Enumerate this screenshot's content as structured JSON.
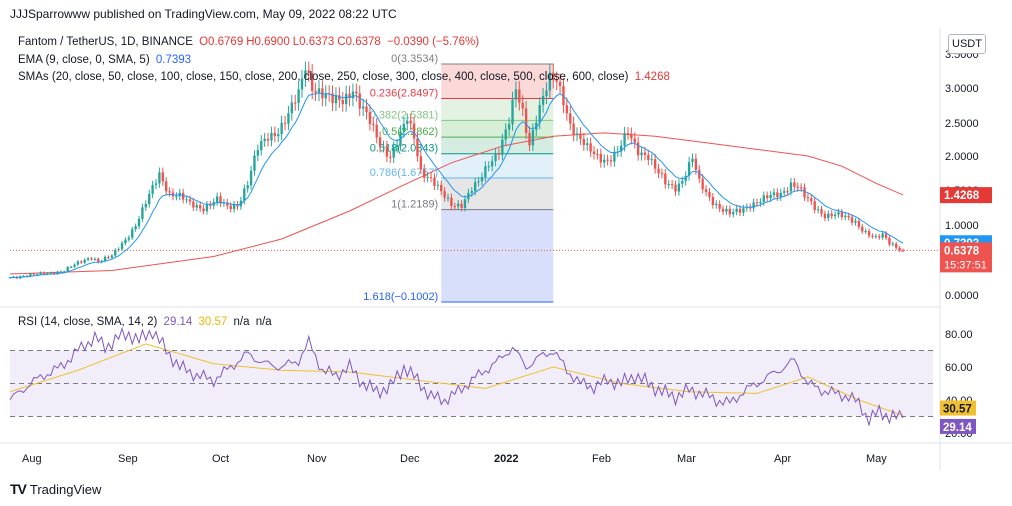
{
  "header": {
    "publish_text": "JJJSparrowww published on TradingView.com, May 09, 2022 08:22 UTC"
  },
  "legend": {
    "symbol": "Fantom / TetherUS, 1D, BINANCE",
    "open": "O0.6769",
    "high": "H0.6900",
    "low": "L0.6373",
    "close": "C0.6378",
    "change": "−0.0390 (−5.76%)",
    "ema_label": "EMA (9, close, 0, SMA, 5)",
    "ema_value": "0.7393",
    "sma_label": "SMAs (20, close, 50, close, 100, close, 150, close, 200, close, 250, close, 300, close, 400, close, 500, close, 600, close)",
    "sma_value": "1.4268",
    "rsi_label": "RSI (14, close, SMA, 14, 2)",
    "rsi_value": "29.14",
    "rsi_sma_value": "30.57",
    "na1": "n/a",
    "na2": "n/a"
  },
  "currency_button": "USDT",
  "footer": {
    "logo": "TV",
    "brand": "TradingView"
  },
  "colors": {
    "up": "#26a69a",
    "down": "#ef5350",
    "ema": "#2196f3",
    "sma": "#ef5350",
    "rsi": "#7e57c2",
    "rsi_ma": "#f0c030"
  },
  "chart_data": [
    {
      "type": "candlestick",
      "title": "Fantom / TetherUS, 1D, BINANCE",
      "x_labels": [
        "Aug",
        "Sep",
        "Oct",
        "Nov",
        "Dec",
        "2022",
        "Feb",
        "Mar",
        "Apr",
        "May"
      ],
      "y_ticks": [
        "0.0000",
        "1.0000",
        "1.5000",
        "2.0000",
        "2.5000",
        "3.0000",
        "3.5000"
      ],
      "ylim": [
        -0.1,
        3.6
      ],
      "series": [
        {
          "name": "FTMUSDT close",
          "points": [
            [
              0,
              0.25
            ],
            [
              4,
              0.28
            ],
            [
              8,
              0.29
            ],
            [
              12,
              0.32
            ],
            [
              16,
              0.35
            ],
            [
              20,
              0.45
            ],
            [
              24,
              0.55
            ],
            [
              26,
              0.48
            ],
            [
              30,
              0.55
            ],
            [
              34,
              0.8
            ],
            [
              37,
              1.0
            ],
            [
              40,
              1.3
            ],
            [
              44,
              1.75
            ],
            [
              47,
              1.45
            ],
            [
              50,
              1.4
            ],
            [
              53,
              1.3
            ],
            [
              57,
              1.25
            ],
            [
              61,
              1.35
            ],
            [
              64,
              1.25
            ],
            [
              67,
              1.3
            ],
            [
              70,
              1.6
            ],
            [
              73,
              2.1
            ],
            [
              76,
              2.3
            ],
            [
              79,
              2.4
            ],
            [
              82,
              2.6
            ],
            [
              85,
              2.9
            ],
            [
              87,
              3.35
            ],
            [
              89,
              3.05
            ],
            [
              92,
              2.9
            ],
            [
              95,
              2.8
            ],
            [
              98,
              2.85
            ],
            [
              101,
              3.0
            ],
            [
              103,
              2.75
            ],
            [
              106,
              2.5
            ],
            [
              109,
              2.2
            ],
            [
              112,
              2.0
            ],
            [
              115,
              2.3
            ],
            [
              117,
              2.55
            ],
            [
              119,
              2.3
            ],
            [
              121,
              1.8
            ],
            [
              124,
              1.65
            ],
            [
              127,
              1.45
            ],
            [
              130,
              1.3
            ],
            [
              133,
              1.3
            ],
            [
              136,
              1.5
            ],
            [
              138,
              1.6
            ],
            [
              141,
              1.9
            ],
            [
              144,
              2.1
            ],
            [
              147,
              2.5
            ],
            [
              149,
              2.95
            ],
            [
              151,
              2.65
            ],
            [
              153,
              2.2
            ],
            [
              155,
              2.6
            ],
            [
              157,
              2.85
            ],
            [
              159,
              3.1
            ],
            [
              161,
              3.1
            ],
            [
              163,
              2.85
            ],
            [
              165,
              2.5
            ],
            [
              167,
              2.3
            ],
            [
              170,
              2.1
            ],
            [
              173,
              2.0
            ],
            [
              176,
              1.95
            ],
            [
              179,
              2.05
            ],
            [
              182,
              2.35
            ],
            [
              185,
              2.1
            ],
            [
              188,
              2.0
            ],
            [
              190,
              1.8
            ],
            [
              193,
              1.6
            ],
            [
              196,
              1.55
            ],
            [
              198,
              1.65
            ],
            [
              201,
              1.95
            ],
            [
              203,
              1.6
            ],
            [
              206,
              1.4
            ],
            [
              209,
              1.25
            ],
            [
              212,
              1.15
            ],
            [
              215,
              1.2
            ],
            [
              218,
              1.3
            ],
            [
              221,
              1.35
            ],
            [
              224,
              1.4
            ],
            [
              227,
              1.45
            ],
            [
              230,
              1.6
            ],
            [
              232,
              1.55
            ],
            [
              234,
              1.4
            ],
            [
              237,
              1.25
            ],
            [
              240,
              1.15
            ],
            [
              243,
              1.15
            ],
            [
              246,
              1.1
            ],
            [
              249,
              1.05
            ],
            [
              252,
              0.9
            ],
            [
              255,
              0.8
            ],
            [
              257,
              0.85
            ],
            [
              259,
              0.75
            ],
            [
              261,
              0.7
            ],
            [
              263,
              0.6378
            ]
          ]
        },
        {
          "name": "EMA 9",
          "value": "0.7393"
        },
        {
          "name": "SMA",
          "value": "1.4268",
          "points": [
            [
              0,
              0.3
            ],
            [
              30,
              0.35
            ],
            [
              60,
              0.55
            ],
            [
              80,
              0.8
            ],
            [
              100,
              1.2
            ],
            [
              115,
              1.55
            ],
            [
              130,
              1.9
            ],
            [
              145,
              2.15
            ],
            [
              160,
              2.3
            ],
            [
              175,
              2.35
            ],
            [
              190,
              2.3
            ],
            [
              205,
              2.2
            ],
            [
              220,
              2.1
            ],
            [
              235,
              2.0
            ],
            [
              245,
              1.85
            ],
            [
              255,
              1.6
            ],
            [
              263,
              1.43
            ]
          ]
        }
      ],
      "fibonacci": [
        {
          "label": "0(3.3534)",
          "value": 3.3534
        },
        {
          "label": "0.236(2.8497)",
          "value": 2.8497
        },
        {
          "label": "0.382(2.5381)",
          "value": 2.5381
        },
        {
          "label": "0.5(2.2862)",
          "value": 2.2862
        },
        {
          "label": "0.618(2.0343)",
          "value": 2.0343
        },
        {
          "label": "0.786(1.6757)",
          "value": 1.6757
        },
        {
          "label": "1(1.2189)",
          "value": 1.2189
        },
        {
          "label": "1.618(−0.1002)",
          "value": -0.1002
        }
      ],
      "price_tags": [
        {
          "label": "1.4268",
          "value": 1.4268,
          "color": "#e53935"
        },
        {
          "label": "0.7393",
          "value": 0.7393,
          "color": "#2196f3"
        },
        {
          "label": "0.6378",
          "value": 0.6378,
          "color": "#ef5350",
          "sub": "15:37:51"
        }
      ]
    },
    {
      "type": "line",
      "title": "RSI (14, close, SMA, 14, 2)",
      "y_ticks": [
        "20.00",
        "40.00",
        "60.00",
        "80.00"
      ],
      "ylim": [
        15,
        90
      ],
      "bands": [
        30,
        50,
        70
      ],
      "series": [
        {
          "name": "RSI",
          "value": "29.14",
          "points": [
            [
              0,
              40
            ],
            [
              6,
              50
            ],
            [
              10,
              55
            ],
            [
              15,
              60
            ],
            [
              20,
              70
            ],
            [
              25,
              78
            ],
            [
              28,
              72
            ],
            [
              32,
              78
            ],
            [
              35,
              80
            ],
            [
              38,
              76
            ],
            [
              42,
              82
            ],
            [
              46,
              70
            ],
            [
              50,
              60
            ],
            [
              55,
              55
            ],
            [
              60,
              52
            ],
            [
              65,
              60
            ],
            [
              70,
              68
            ],
            [
              75,
              62
            ],
            [
              80,
              60
            ],
            [
              85,
              64
            ],
            [
              88,
              75
            ],
            [
              92,
              58
            ],
            [
              96,
              55
            ],
            [
              100,
              60
            ],
            [
              104,
              50
            ],
            [
              108,
              45
            ],
            [
              112,
              48
            ],
            [
              116,
              60
            ],
            [
              120,
              52
            ],
            [
              124,
              42
            ],
            [
              128,
              40
            ],
            [
              132,
              45
            ],
            [
              136,
              52
            ],
            [
              140,
              58
            ],
            [
              144,
              64
            ],
            [
              148,
              72
            ],
            [
              152,
              60
            ],
            [
              156,
              66
            ],
            [
              160,
              70
            ],
            [
              164,
              58
            ],
            [
              168,
              50
            ],
            [
              172,
              48
            ],
            [
              176,
              52
            ],
            [
              180,
              50
            ],
            [
              184,
              55
            ],
            [
              188,
              50
            ],
            [
              192,
              45
            ],
            [
              196,
              42
            ],
            [
              200,
              46
            ],
            [
              204,
              44
            ],
            [
              208,
              40
            ],
            [
              212,
              38
            ],
            [
              216,
              45
            ],
            [
              220,
              50
            ],
            [
              224,
              55
            ],
            [
              228,
              60
            ],
            [
              231,
              64
            ],
            [
              235,
              50
            ],
            [
              239,
              46
            ],
            [
              243,
              44
            ],
            [
              247,
              42
            ],
            [
              250,
              38
            ],
            [
              253,
              28
            ],
            [
              256,
              33
            ],
            [
              259,
              30
            ],
            [
              263,
              29.14
            ]
          ]
        },
        {
          "name": "RSI SMA",
          "value": "30.57",
          "points": [
            [
              0,
              45
            ],
            [
              20,
              58
            ],
            [
              40,
              74
            ],
            [
              60,
              62
            ],
            [
              80,
              58
            ],
            [
              100,
              57
            ],
            [
              120,
              52
            ],
            [
              140,
              47
            ],
            [
              160,
              60
            ],
            [
              180,
              50
            ],
            [
              200,
              45
            ],
            [
              220,
              44
            ],
            [
              235,
              54
            ],
            [
              250,
              40
            ],
            [
              263,
              30.57
            ]
          ]
        }
      ]
    }
  ]
}
